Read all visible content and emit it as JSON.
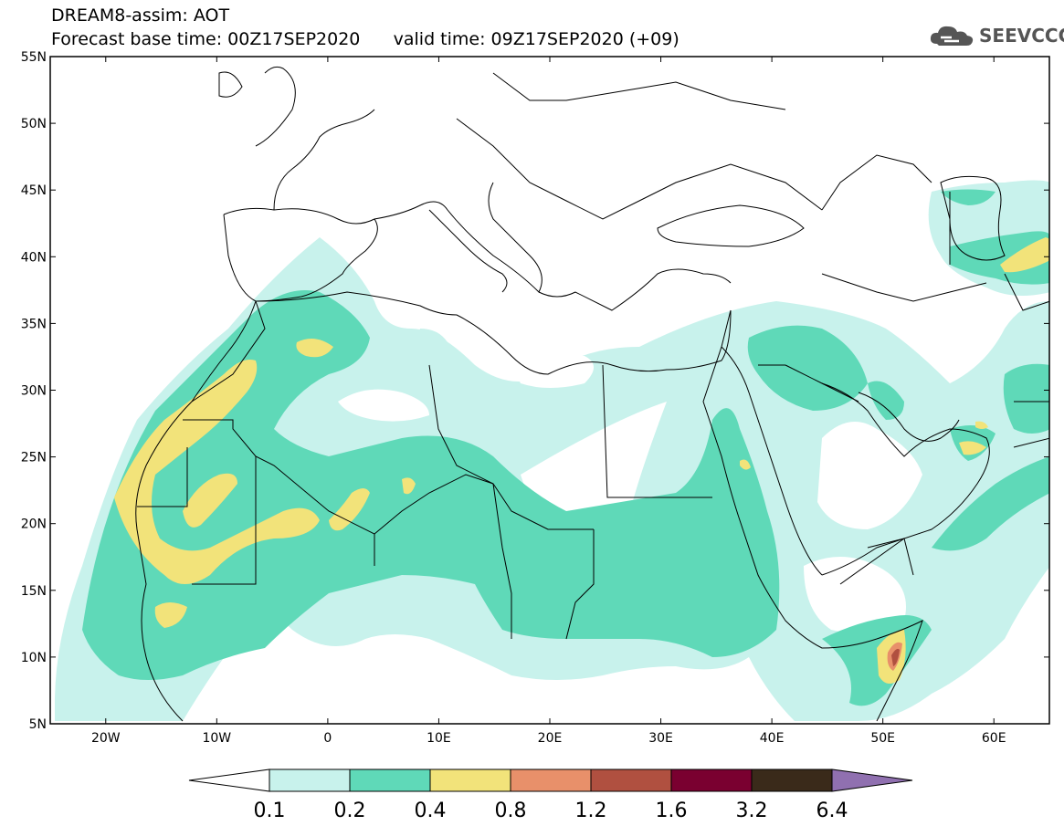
{
  "header": {
    "line1": "DREAM8-assim: AOT",
    "line2_base": "Forecast base time: 00Z17SEP2020",
    "line2_valid": "valid time: 09Z17SEP2020 (+09)"
  },
  "logo": {
    "text": "SEEVCCC",
    "icon": "cloud-logo-icon"
  },
  "map": {
    "lat_labels": [
      "55N",
      "50N",
      "45N",
      "40N",
      "35N",
      "30N",
      "25N",
      "20N",
      "15N",
      "10N",
      "5N"
    ],
    "lon_labels": [
      "20W",
      "10W",
      "0",
      "10E",
      "20E",
      "30E",
      "40E",
      "50E",
      "60E"
    ],
    "lat_range": [
      5,
      55
    ],
    "lon_range": [
      -25,
      65
    ],
    "colors": {
      "c01": "#c8f2ec",
      "c02": "#5fd9b8",
      "c04": "#f2e37a",
      "c08": "#e8906a",
      "c12": "#b05040",
      "c16": "#7a0030",
      "c32": "#3a2a1a",
      "c64": "#9070b0"
    }
  },
  "colorbar": {
    "labels": [
      "0.1",
      "0.2",
      "0.4",
      "0.8",
      "1.2",
      "1.6",
      "3.2",
      "6.4"
    ],
    "colors": [
      "#c8f2ec",
      "#5fd9b8",
      "#f2e37a",
      "#e8906a",
      "#b05040",
      "#7a0030",
      "#3a2a1a"
    ],
    "under_color": "#ffffff",
    "over_color": "#9070b0"
  }
}
